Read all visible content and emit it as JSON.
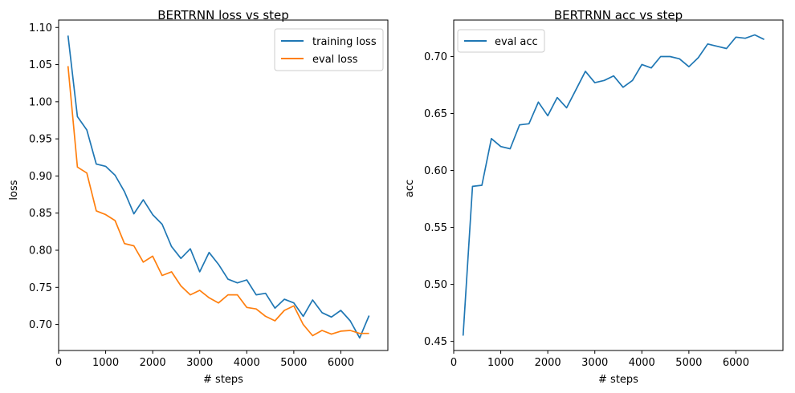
{
  "chart_data": [
    {
      "type": "line",
      "title": "BERTRNN loss vs step",
      "xlabel": "# steps",
      "ylabel": "loss",
      "xlim": [
        0,
        7000
      ],
      "ylim": [
        0.665,
        1.11
      ],
      "xticks": [
        0,
        1000,
        2000,
        3000,
        4000,
        5000,
        6000
      ],
      "xtick_labels": [
        "0",
        "1000",
        "2000",
        "3000",
        "4000",
        "5000",
        "6000"
      ],
      "yticks": [
        0.7,
        0.75,
        0.8,
        0.85,
        0.9,
        0.95,
        1.0,
        1.05,
        1.1
      ],
      "ytick_labels": [
        "0.70",
        "0.75",
        "0.80",
        "0.85",
        "0.90",
        "0.95",
        "1.00",
        "1.05",
        "1.10"
      ],
      "grid": false,
      "legend": "top-right",
      "x": [
        200,
        400,
        600,
        800,
        1000,
        1200,
        1400,
        1600,
        1800,
        2000,
        2200,
        2400,
        2600,
        2800,
        3000,
        3200,
        3400,
        3600,
        3800,
        4000,
        4200,
        4400,
        4600,
        4800,
        5000,
        5200,
        5400,
        5600,
        5800,
        6000,
        6200,
        6400,
        6600
      ],
      "series": [
        {
          "name": "training loss",
          "color": "#1f77b4",
          "values": [
            1.089,
            0.98,
            0.962,
            0.916,
            0.913,
            0.901,
            0.879,
            0.849,
            0.868,
            0.848,
            0.835,
            0.805,
            0.789,
            0.802,
            0.771,
            0.797,
            0.781,
            0.761,
            0.756,
            0.76,
            0.74,
            0.742,
            0.722,
            0.734,
            0.729,
            0.711,
            0.733,
            0.716,
            0.71,
            0.719,
            0.705,
            0.682,
            0.712
          ]
        },
        {
          "name": "eval loss",
          "color": "#ff7f0e",
          "values": [
            1.048,
            0.912,
            0.904,
            0.853,
            0.848,
            0.84,
            0.809,
            0.806,
            0.784,
            0.792,
            0.766,
            0.771,
            0.752,
            0.74,
            0.746,
            0.736,
            0.729,
            0.74,
            0.74,
            0.723,
            0.721,
            0.711,
            0.705,
            0.719,
            0.725,
            0.7,
            0.685,
            0.692,
            0.687,
            0.691,
            0.692,
            0.688,
            0.688
          ]
        }
      ]
    },
    {
      "type": "line",
      "title": "BERTRNN acc vs step",
      "xlabel": "# steps",
      "ylabel": "acc",
      "xlim": [
        0,
        7000
      ],
      "ylim": [
        0.442,
        0.732
      ],
      "xticks": [
        0,
        1000,
        2000,
        3000,
        4000,
        5000,
        6000
      ],
      "xtick_labels": [
        "0",
        "1000",
        "2000",
        "3000",
        "4000",
        "5000",
        "6000"
      ],
      "yticks": [
        0.45,
        0.5,
        0.55,
        0.6,
        0.65,
        0.7
      ],
      "ytick_labels": [
        "0.45",
        "0.50",
        "0.55",
        "0.60",
        "0.65",
        "0.70"
      ],
      "grid": false,
      "legend": "top-left",
      "x": [
        200,
        400,
        600,
        800,
        1000,
        1200,
        1400,
        1600,
        1800,
        2000,
        2200,
        2400,
        2600,
        2800,
        3000,
        3200,
        3400,
        3600,
        3800,
        4000,
        4200,
        4400,
        4600,
        4800,
        5000,
        5200,
        5400,
        5600,
        5800,
        6000,
        6200,
        6400,
        6600
      ],
      "series": [
        {
          "name": "eval acc",
          "color": "#1f77b4",
          "values": [
            0.455,
            0.586,
            0.587,
            0.628,
            0.621,
            0.619,
            0.64,
            0.641,
            0.66,
            0.648,
            0.664,
            0.655,
            0.671,
            0.687,
            0.677,
            0.679,
            0.683,
            0.673,
            0.679,
            0.693,
            0.69,
            0.7,
            0.7,
            0.698,
            0.691,
            0.699,
            0.711,
            0.709,
            0.707,
            0.717,
            0.716,
            0.719,
            0.715
          ]
        }
      ]
    }
  ]
}
